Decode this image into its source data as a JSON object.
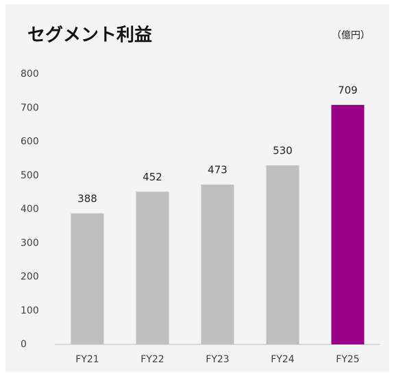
{
  "chart_data": {
    "type": "bar",
    "title": "セグメント利益",
    "unit": "（億円）",
    "categories": [
      "FY21",
      "FY22",
      "FY23",
      "FY24",
      "FY25"
    ],
    "values": [
      388,
      452,
      473,
      530,
      709
    ],
    "colors": [
      "#bfbfbf",
      "#bfbfbf",
      "#bfbfbf",
      "#bfbfbf",
      "#990088"
    ],
    "ylim": [
      0,
      800
    ],
    "yticks": [
      0,
      100,
      200,
      300,
      400,
      500,
      600,
      700,
      800
    ],
    "grid": false
  }
}
